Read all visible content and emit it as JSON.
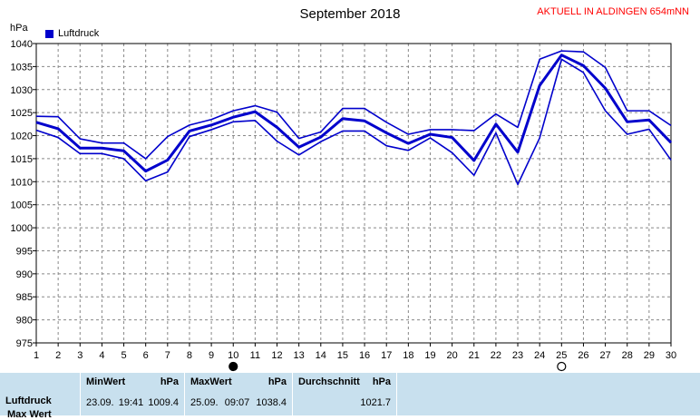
{
  "title": "September 2018",
  "station": "AKTUELL IN ALDINGEN 654mNN",
  "unit": "hPa",
  "legend_label": "Luftdruck",
  "colors": {
    "series": "#0000cc",
    "grid": "#888888",
    "background": "#ffffff",
    "station": "#ff0000",
    "stats_bg": "#c8e0ee"
  },
  "moon_markers": [
    {
      "day": 10,
      "phase": "new-moon"
    },
    {
      "day": 25,
      "phase": "full-moon"
    }
  ],
  "chart_data": {
    "type": "line",
    "xlabel": "",
    "ylabel": "hPa",
    "x": [
      1,
      2,
      3,
      4,
      5,
      6,
      7,
      8,
      9,
      10,
      11,
      12,
      13,
      14,
      15,
      16,
      17,
      18,
      19,
      20,
      21,
      22,
      23,
      24,
      25,
      26,
      27,
      28,
      29,
      30
    ],
    "ylim": [
      975,
      1040
    ],
    "yticks": [
      975,
      980,
      985,
      990,
      995,
      1000,
      1005,
      1010,
      1015,
      1020,
      1025,
      1030,
      1035,
      1040
    ],
    "grid": true,
    "legend": "top-left",
    "series": [
      {
        "name": "Luftdruck",
        "role": "max",
        "values": [
          1024.2,
          1024.1,
          1019.3,
          1018.4,
          1018.4,
          1015.0,
          1019.8,
          1022.3,
          1023.5,
          1025.4,
          1026.5,
          1025.1,
          1019.4,
          1020.8,
          1025.9,
          1025.9,
          1022.9,
          1020.3,
          1021.3,
          1021.3,
          1021.1,
          1024.7,
          1021.8,
          1036.6,
          1038.4,
          1038.2,
          1034.8,
          1025.4,
          1025.4,
          1022.2
        ]
      },
      {
        "name": "Luftdruck",
        "role": "avg",
        "values": [
          1022.9,
          1021.5,
          1017.3,
          1017.3,
          1016.7,
          1012.3,
          1014.7,
          1021.0,
          1022.3,
          1024.0,
          1025.2,
          1021.8,
          1017.5,
          1019.7,
          1023.7,
          1023.2,
          1020.6,
          1018.3,
          1020.3,
          1019.6,
          1014.6,
          1022.5,
          1016.4,
          1030.9,
          1037.5,
          1035.2,
          1030.3,
          1023.0,
          1023.4,
          1018.5
        ]
      },
      {
        "name": "Luftdruck",
        "role": "min",
        "values": [
          1021.2,
          1019.6,
          1016.1,
          1016.1,
          1015.0,
          1010.2,
          1012.1,
          1019.8,
          1021.3,
          1023.0,
          1023.3,
          1018.8,
          1015.8,
          1018.7,
          1021.0,
          1021.0,
          1017.8,
          1016.8,
          1019.5,
          1016.3,
          1011.4,
          1020.6,
          1009.4,
          1019.5,
          1036.6,
          1033.7,
          1025.4,
          1020.3,
          1021.4,
          1014.7
        ]
      }
    ]
  },
  "stats": {
    "row_label": "Luftdruck",
    "row_label_next": "Max Wert",
    "min": {
      "header": "MinWert",
      "unit": "hPa",
      "date": "23.09.",
      "time": "19:41",
      "value": "1009.4"
    },
    "max": {
      "header": "MaxWert",
      "unit": "hPa",
      "date": "25.09.",
      "time": "09:07",
      "value": "1038.4"
    },
    "avg": {
      "header": "Durchschnitt",
      "unit": "hPa",
      "value": "1021.7"
    }
  }
}
